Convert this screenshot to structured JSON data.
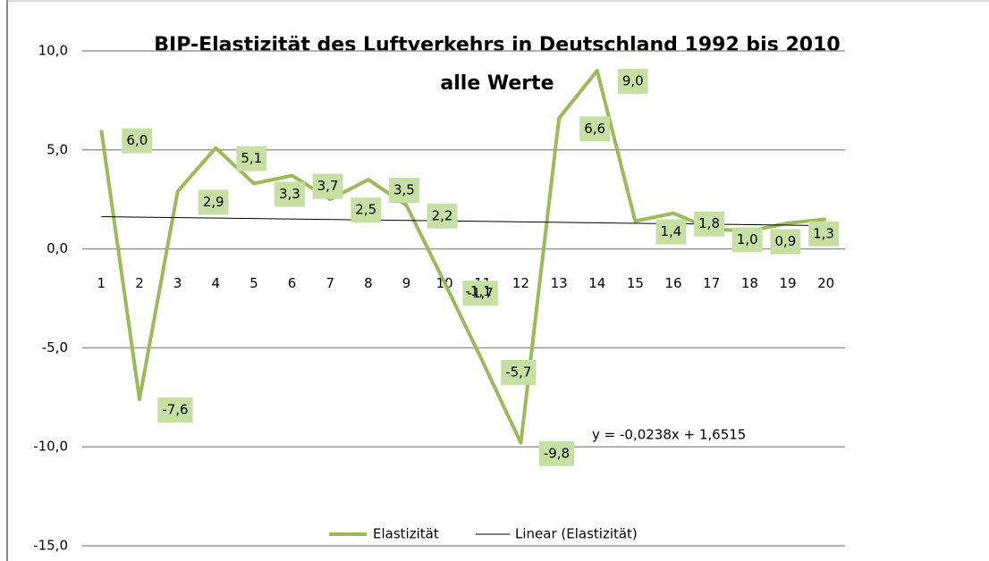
{
  "chart_data": {
    "type": "line",
    "title": "BIP-Elastizität des Luftverkehrs  in Deutschland 1992 bis 2010",
    "subtitle": "alle Werte",
    "categories": [
      1,
      2,
      3,
      4,
      5,
      6,
      7,
      8,
      9,
      10,
      11,
      12,
      13,
      14,
      15,
      16,
      17,
      18,
      19,
      20
    ],
    "series": [
      {
        "name": "Elastizität",
        "color": "#9bbb59",
        "values": [
          6.0,
          -7.6,
          2.9,
          5.1,
          3.3,
          3.7,
          2.5,
          3.5,
          2.2,
          -1.7,
          -5.7,
          -9.8,
          6.6,
          9.0,
          1.4,
          1.8,
          1.0,
          0.9,
          1.3,
          1.5
        ],
        "value_labels": [
          "6,0",
          "-7,6",
          "2,9",
          "5,1",
          "3,3",
          "3,7",
          "2,5",
          "3,5",
          "2,2",
          "-1,7",
          "-5,7",
          "-9,8",
          "6,6",
          "9,0",
          "1,4",
          "1,8",
          "1,0",
          "0,9",
          "1,3",
          null
        ]
      }
    ],
    "annotations": [
      "-1,1"
    ],
    "trendline": {
      "name": "Linear (Elastizität)",
      "slope": -0.0238,
      "intercept": 1.6515,
      "label": "y = -0,0238x + 1,6515",
      "color": "#000000"
    },
    "ylim": [
      -15,
      10
    ],
    "yticks": [
      {
        "value": -15,
        "label": "-15,0"
      },
      {
        "value": -10,
        "label": "-10,0"
      },
      {
        "value": -5,
        "label": "-5,0"
      },
      {
        "value": 0,
        "label": "0,0"
      },
      {
        "value": 5,
        "label": "5,0"
      },
      {
        "value": 10,
        "label": "10,0"
      }
    ],
    "grid": true
  }
}
